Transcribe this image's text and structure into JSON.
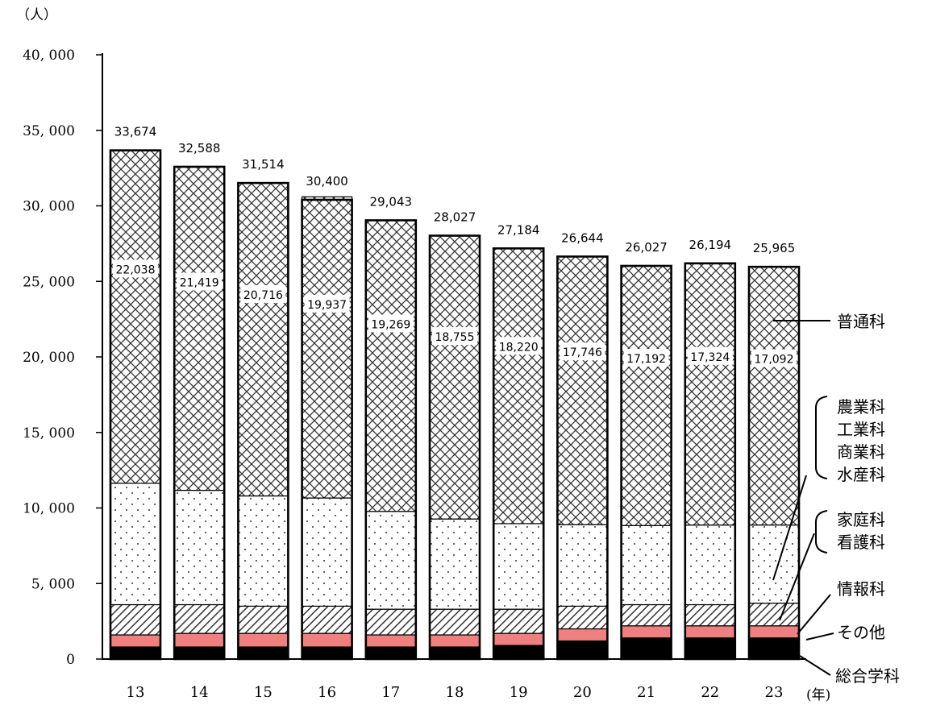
{
  "chart_data": {
    "type": "bar",
    "stacked": true,
    "unit_label": "（人）",
    "x_unit_label": "(年)",
    "categories": [
      "13",
      "14",
      "15",
      "16",
      "17",
      "18",
      "19",
      "20",
      "21",
      "22",
      "23"
    ],
    "ylim": [
      0,
      40000
    ],
    "yticks": [
      0,
      5000,
      10000,
      15000,
      20000,
      25000,
      30000,
      35000,
      40000
    ],
    "ytick_labels": [
      "0",
      "5, 000",
      "10, 000",
      "15, 000",
      "20, 000",
      "25, 000",
      "30, 000",
      "35, 000",
      "40, 000"
    ],
    "totals": [
      33674,
      32588,
      31514,
      30400,
      29043,
      28027,
      27184,
      26644,
      26027,
      26194,
      25965
    ],
    "total_labels": [
      "33,674",
      "32,588",
      "31,514",
      "30,400",
      "29,043",
      "28,027",
      "27,184",
      "26,644",
      "26,027",
      "26,194",
      "25,965"
    ],
    "segment_label_series": "普通科",
    "segment_labels": [
      "22,038",
      "21,419",
      "20,716",
      "19,937",
      "19,269",
      "18,755",
      "18,220",
      "17,746",
      "17,192",
      "17,324",
      "17,092"
    ],
    "series": [
      {
        "name": "総合学科",
        "pattern": "solid-black",
        "values": [
          800,
          800,
          800,
          800,
          800,
          800,
          900,
          1200,
          1400,
          1400,
          1400
        ]
      },
      {
        "name": "その他",
        "pattern": "solid-pink",
        "values": [
          800,
          900,
          900,
          900,
          800,
          800,
          800,
          800,
          800,
          800,
          800
        ]
      },
      {
        "name": "情報科",
        "pattern": "diagonal-hatch",
        "values": [
          0,
          0,
          0,
          0,
          0,
          0,
          0,
          0,
          0,
          0,
          0
        ]
      },
      {
        "name": "家庭科・看護科",
        "pattern": "diagonal-hatch",
        "values": [
          2000,
          1900,
          1800,
          1800,
          1700,
          1700,
          1600,
          1500,
          1400,
          1400,
          1500
        ]
      },
      {
        "name": "農業科・工業科・商業科・水産科",
        "pattern": "dots",
        "values": [
          8036,
          7569,
          7298,
          7163,
          6474,
          5972,
          5664,
          5398,
          5235,
          5270,
          5173
        ]
      },
      {
        "name": "普通科",
        "pattern": "crosshatch",
        "values": [
          22038,
          21419,
          20716,
          19937,
          19269,
          18755,
          18220,
          17746,
          17192,
          17324,
          17092
        ]
      }
    ],
    "legend_placement": "right",
    "legend_labels": [
      {
        "lines": [
          "普通科"
        ]
      },
      {
        "lines": [
          "農業科",
          "工業科",
          "商業科",
          "水産科"
        ]
      },
      {
        "lines": [
          "家庭科",
          "看護科"
        ]
      },
      {
        "lines": [
          "情報科"
        ]
      },
      {
        "lines": [
          "その他"
        ]
      },
      {
        "lines": [
          "総合学科"
        ]
      }
    ],
    "colors": {
      "bar_outline": "#000000",
      "black_segment": "#000000",
      "pink_segment": "#f08080",
      "dot_color": "#555555",
      "hatch_color": "#333333",
      "crosshatch_color": "#333333"
    }
  }
}
